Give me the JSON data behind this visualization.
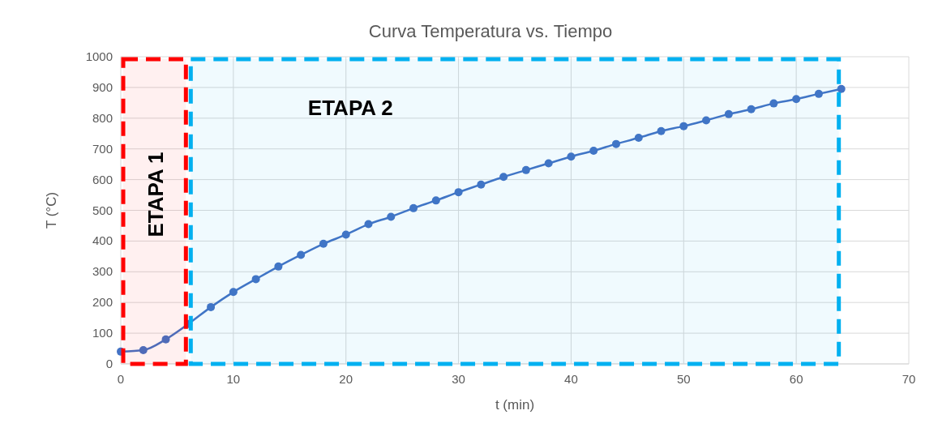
{
  "chart_data": {
    "type": "line",
    "title": "Curva Temperatura vs. Tiempo",
    "xlabel": "t (min)",
    "ylabel": "T (°C)",
    "x": [
      0,
      2,
      4,
      6,
      8,
      10,
      12,
      14,
      16,
      18,
      20,
      22,
      24,
      26,
      28,
      30,
      32,
      34,
      36,
      38,
      40,
      42,
      44,
      46,
      48,
      50,
      52,
      54,
      56,
      58,
      60,
      62,
      64
    ],
    "series": [
      {
        "color": "#4472c4",
        "values": [
          40,
          45,
          80,
          130,
          185,
          234,
          276,
          317,
          355,
          391,
          421,
          455,
          479,
          507,
          532,
          559,
          584,
          609,
          631,
          653,
          675,
          694,
          716,
          736,
          758,
          774,
          793,
          813,
          829,
          848,
          862,
          879,
          895
        ]
      }
    ],
    "xlim": [
      0,
      70
    ],
    "xticks": [
      0,
      10,
      20,
      30,
      40,
      50,
      60,
      70
    ],
    "ylim": [
      0,
      1000
    ],
    "yticks": [
      0,
      100,
      200,
      300,
      400,
      500,
      600,
      700,
      800,
      900,
      1000
    ],
    "grid": true,
    "marker": "circle",
    "line_style": "solid",
    "bands": [
      {
        "axis": "x",
        "from": 0,
        "to": 6,
        "label": "ETAPA 1",
        "color": "#ff0000"
      },
      {
        "axis": "x",
        "from": 6,
        "to": 64,
        "label": "ETAPA 2",
        "color": "#00b0f0"
      }
    ]
  }
}
